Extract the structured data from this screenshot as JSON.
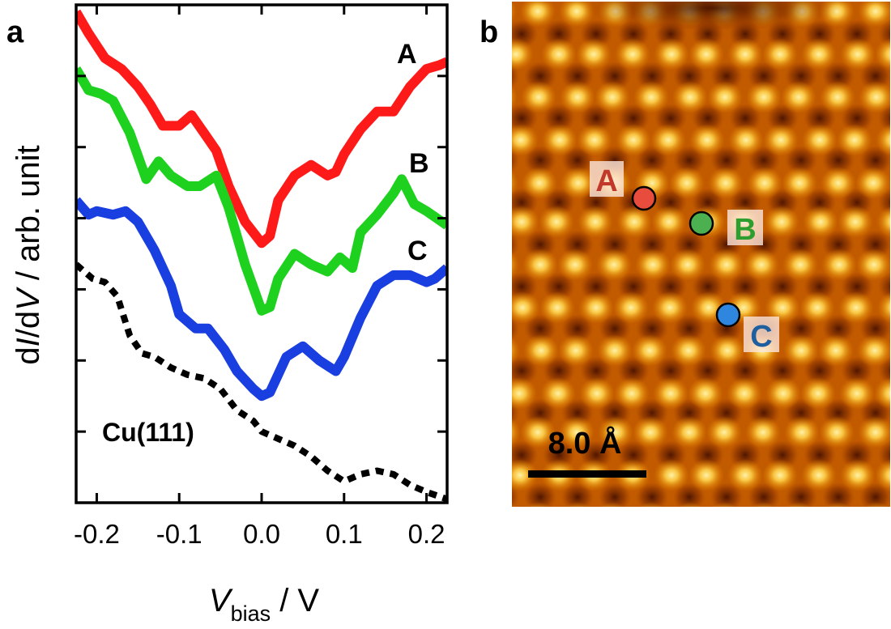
{
  "panel_a_label": "a",
  "panel_b_label": "b",
  "chart_data": {
    "type": "line",
    "xlabel_main": "V",
    "xlabel_sub": "bias",
    "xlabel_unit": " / V",
    "ylabel_parts": [
      "d",
      "I",
      "/d",
      "V",
      " / arb. unit"
    ],
    "xlim": [
      -0.225,
      0.225
    ],
    "ylim": [
      0,
      7
    ],
    "xticks": [
      -0.2,
      -0.1,
      0.0,
      0.1,
      0.2
    ],
    "xtick_labels": [
      "-0.2",
      "-0.1",
      "0.0",
      "0.1",
      "0.2"
    ],
    "yticks": [
      1,
      2,
      3,
      4,
      5,
      6
    ],
    "series": [
      {
        "name": "A",
        "color": "#ff1a1a",
        "label_color": "#c0392b",
        "dashed": false,
        "x": [
          -0.225,
          -0.21,
          -0.19,
          -0.17,
          -0.15,
          -0.135,
          -0.12,
          -0.1,
          -0.085,
          -0.07,
          -0.055,
          -0.04,
          -0.02,
          0.0,
          0.01,
          0.02,
          0.04,
          0.06,
          0.08,
          0.09,
          0.1,
          0.12,
          0.14,
          0.16,
          0.18,
          0.2,
          0.215,
          0.225
        ],
        "y": [
          6.9,
          6.6,
          6.25,
          6.1,
          5.85,
          5.6,
          5.3,
          5.3,
          5.45,
          5.2,
          4.95,
          4.45,
          3.95,
          3.65,
          3.75,
          4.25,
          4.6,
          4.75,
          4.6,
          4.65,
          4.9,
          5.25,
          5.5,
          5.5,
          5.85,
          6.1,
          6.15,
          6.2
        ]
      },
      {
        "name": "B",
        "color": "#1fd11f",
        "label_color": "#2e9e2e",
        "dashed": false,
        "x": [
          -0.225,
          -0.21,
          -0.195,
          -0.18,
          -0.16,
          -0.14,
          -0.125,
          -0.11,
          -0.09,
          -0.075,
          -0.055,
          -0.04,
          -0.02,
          0.0,
          0.01,
          0.02,
          0.04,
          0.06,
          0.08,
          0.095,
          0.11,
          0.12,
          0.14,
          0.16,
          0.17,
          0.185,
          0.2,
          0.225
        ],
        "y": [
          6.1,
          5.8,
          5.75,
          5.65,
          5.2,
          4.55,
          4.8,
          4.6,
          4.45,
          4.45,
          4.6,
          4.15,
          3.35,
          2.7,
          2.75,
          3.15,
          3.5,
          3.35,
          3.25,
          3.45,
          3.3,
          3.8,
          4.05,
          4.35,
          4.55,
          4.2,
          4.1,
          3.9
        ]
      },
      {
        "name": "C",
        "color": "#1a3fe0",
        "label_color": "#1f5fa0",
        "dashed": false,
        "x": [
          -0.225,
          -0.21,
          -0.2,
          -0.18,
          -0.165,
          -0.15,
          -0.13,
          -0.11,
          -0.1,
          -0.08,
          -0.065,
          -0.045,
          -0.03,
          -0.01,
          0.0,
          0.01,
          0.03,
          0.05,
          0.07,
          0.09,
          0.1,
          0.12,
          0.14,
          0.16,
          0.18,
          0.2,
          0.21,
          0.225
        ],
        "y": [
          4.25,
          4.05,
          4.1,
          4.05,
          4.1,
          3.95,
          3.55,
          3.05,
          2.65,
          2.45,
          2.45,
          2.15,
          1.85,
          1.6,
          1.5,
          1.55,
          2.05,
          2.2,
          2.0,
          1.85,
          2.05,
          2.6,
          3.05,
          3.2,
          3.2,
          3.1,
          3.15,
          3.3
        ]
      },
      {
        "name": "Cu(111)",
        "color": "#000000",
        "label_color": "#000000",
        "dashed": true,
        "x": [
          -0.225,
          -0.205,
          -0.19,
          -0.175,
          -0.16,
          -0.145,
          -0.13,
          -0.11,
          -0.09,
          -0.07,
          -0.05,
          -0.03,
          -0.01,
          0.0,
          0.02,
          0.04,
          0.06,
          0.08,
          0.1,
          0.12,
          0.14,
          0.16,
          0.18,
          0.2,
          0.225
        ],
        "y": [
          3.35,
          3.15,
          3.1,
          2.9,
          2.35,
          2.1,
          2.05,
          1.9,
          1.8,
          1.75,
          1.6,
          1.3,
          1.15,
          1.0,
          0.9,
          0.8,
          0.65,
          0.45,
          0.3,
          0.4,
          0.45,
          0.4,
          0.25,
          0.15,
          0.05
        ]
      }
    ],
    "annotations": {
      "A": "A",
      "B": "B",
      "C": "C",
      "ref": "Cu(111)"
    }
  },
  "stm_image": {
    "colormap": "afmhot",
    "sites": [
      {
        "label": "A",
        "color": "#e74c3c",
        "label_color": "#c0392b"
      },
      {
        "label": "B",
        "color": "#4caf50",
        "label_color": "#2e9e2e"
      },
      {
        "label": "C",
        "color": "#2e86de",
        "label_color": "#1f5fa0"
      }
    ],
    "scale_bar_label": "8.0 Å"
  }
}
